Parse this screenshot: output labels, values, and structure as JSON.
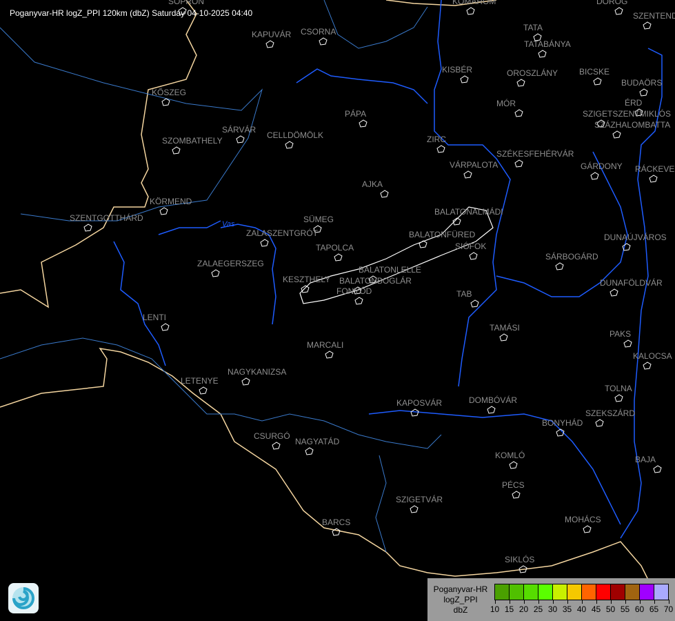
{
  "header": {
    "title": "Poganyvar-HR logZ_PPI 120km (dbZ) Saturday 04-10-2025 04:40"
  },
  "map": {
    "colors": {
      "border": "#f5d6a0",
      "river": "#1e5cff",
      "county": "#3a7acc",
      "city_outline": "#ffffff",
      "label": "#8e8e8e"
    },
    "cities": [
      "SOPRON",
      "KOMÁROM",
      "DOROG",
      "SZENTENDRE",
      "KAPUVÁR",
      "CSORNA",
      "TATA",
      "TATABÁNYA",
      "KISBÉR",
      "OROSZLÁNY",
      "BICSKE",
      "BUDAÖRS",
      "ÉRD",
      "SZIGETSZENTMIKLÓS",
      "SZÁZHALOMBATTA",
      "KŐSZEG",
      "PÁPA",
      "MÓR",
      "SZOMBATHELY",
      "SÁRVÁR",
      "CELLDÖMÖLK",
      "ZIRC",
      "VÁRPALOTA",
      "SZÉKESFEHÉRVÁR",
      "GÁRDONY",
      "RÁCKEVE",
      "AJKA",
      "KÖRMEND",
      "SZENTGOTTHÁRD",
      "BALATONALMÁDI",
      "SÜMEG",
      "ZALASZENTGRÓT",
      "TAPOLCA",
      "BALATONFÜRED",
      "SIÓFOK",
      "DUNAÚJVÁROS",
      "SÁRBOGÁRD",
      "ZALAEGERSZEG",
      "KESZTHELY",
      "BALATONLELLE",
      "BALATONBOGLÁR",
      "FONYÓD",
      "DUNAFÖLDVÁR",
      "TAB",
      "LENTI",
      "TAMÁSI",
      "PAKS",
      "MARCALI",
      "KALOCSA",
      "NAGYKANIZSA",
      "LETENYE",
      "TOLNA",
      "KAPOSVÁR",
      "DOMBÓVÁR",
      "SZEKSZÁRD",
      "BONYHÁD",
      "CSURGÓ",
      "NAGYATÁD",
      "KOMLÓ",
      "BAJA",
      "PÉCS",
      "SZIGETVÁR",
      "MOHÁCS",
      "BARCS",
      "SIKLÓS"
    ],
    "rivers": [
      "Vas"
    ]
  },
  "legend": {
    "lines": [
      "Poganyvar-HR",
      "logZ_PPI",
      "dbZ"
    ],
    "ticks": [
      "10",
      "15",
      "20",
      "25",
      "30",
      "35",
      "40",
      "45",
      "50",
      "55",
      "60",
      "65",
      "70"
    ],
    "colors": [
      "#4aa000",
      "#50c000",
      "#56dc00",
      "#5aff00",
      "#c8f000",
      "#f5c800",
      "#ff6400",
      "#ff0000",
      "#a00000",
      "#a06410",
      "#a000ff",
      "#aaaaff"
    ]
  },
  "logo": {
    "icon": "swirl-logo-icon"
  }
}
